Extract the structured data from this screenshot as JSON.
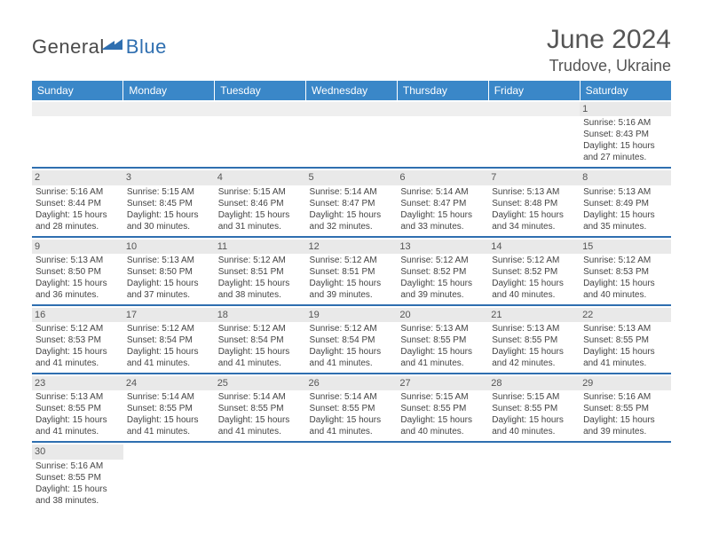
{
  "logo": {
    "main": "General",
    "accent": "Blue"
  },
  "title": "June 2024",
  "location": "Trudove, Ukraine",
  "colors": {
    "header_bg": "#3a87c8",
    "row_sep": "#2f6fb0",
    "daynum_bg": "#e9e9e9",
    "text": "#444444",
    "title_text": "#555555"
  },
  "weekdays": [
    "Sunday",
    "Monday",
    "Tuesday",
    "Wednesday",
    "Thursday",
    "Friday",
    "Saturday"
  ],
  "weeks": [
    [
      null,
      null,
      null,
      null,
      null,
      null,
      {
        "n": "1",
        "sr": "Sunrise: 5:16 AM",
        "ss": "Sunset: 8:43 PM",
        "dl": "Daylight: 15 hours and 27 minutes."
      }
    ],
    [
      {
        "n": "2",
        "sr": "Sunrise: 5:16 AM",
        "ss": "Sunset: 8:44 PM",
        "dl": "Daylight: 15 hours and 28 minutes."
      },
      {
        "n": "3",
        "sr": "Sunrise: 5:15 AM",
        "ss": "Sunset: 8:45 PM",
        "dl": "Daylight: 15 hours and 30 minutes."
      },
      {
        "n": "4",
        "sr": "Sunrise: 5:15 AM",
        "ss": "Sunset: 8:46 PM",
        "dl": "Daylight: 15 hours and 31 minutes."
      },
      {
        "n": "5",
        "sr": "Sunrise: 5:14 AM",
        "ss": "Sunset: 8:47 PM",
        "dl": "Daylight: 15 hours and 32 minutes."
      },
      {
        "n": "6",
        "sr": "Sunrise: 5:14 AM",
        "ss": "Sunset: 8:47 PM",
        "dl": "Daylight: 15 hours and 33 minutes."
      },
      {
        "n": "7",
        "sr": "Sunrise: 5:13 AM",
        "ss": "Sunset: 8:48 PM",
        "dl": "Daylight: 15 hours and 34 minutes."
      },
      {
        "n": "8",
        "sr": "Sunrise: 5:13 AM",
        "ss": "Sunset: 8:49 PM",
        "dl": "Daylight: 15 hours and 35 minutes."
      }
    ],
    [
      {
        "n": "9",
        "sr": "Sunrise: 5:13 AM",
        "ss": "Sunset: 8:50 PM",
        "dl": "Daylight: 15 hours and 36 minutes."
      },
      {
        "n": "10",
        "sr": "Sunrise: 5:13 AM",
        "ss": "Sunset: 8:50 PM",
        "dl": "Daylight: 15 hours and 37 minutes."
      },
      {
        "n": "11",
        "sr": "Sunrise: 5:12 AM",
        "ss": "Sunset: 8:51 PM",
        "dl": "Daylight: 15 hours and 38 minutes."
      },
      {
        "n": "12",
        "sr": "Sunrise: 5:12 AM",
        "ss": "Sunset: 8:51 PM",
        "dl": "Daylight: 15 hours and 39 minutes."
      },
      {
        "n": "13",
        "sr": "Sunrise: 5:12 AM",
        "ss": "Sunset: 8:52 PM",
        "dl": "Daylight: 15 hours and 39 minutes."
      },
      {
        "n": "14",
        "sr": "Sunrise: 5:12 AM",
        "ss": "Sunset: 8:52 PM",
        "dl": "Daylight: 15 hours and 40 minutes."
      },
      {
        "n": "15",
        "sr": "Sunrise: 5:12 AM",
        "ss": "Sunset: 8:53 PM",
        "dl": "Daylight: 15 hours and 40 minutes."
      }
    ],
    [
      {
        "n": "16",
        "sr": "Sunrise: 5:12 AM",
        "ss": "Sunset: 8:53 PM",
        "dl": "Daylight: 15 hours and 41 minutes."
      },
      {
        "n": "17",
        "sr": "Sunrise: 5:12 AM",
        "ss": "Sunset: 8:54 PM",
        "dl": "Daylight: 15 hours and 41 minutes."
      },
      {
        "n": "18",
        "sr": "Sunrise: 5:12 AM",
        "ss": "Sunset: 8:54 PM",
        "dl": "Daylight: 15 hours and 41 minutes."
      },
      {
        "n": "19",
        "sr": "Sunrise: 5:12 AM",
        "ss": "Sunset: 8:54 PM",
        "dl": "Daylight: 15 hours and 41 minutes."
      },
      {
        "n": "20",
        "sr": "Sunrise: 5:13 AM",
        "ss": "Sunset: 8:55 PM",
        "dl": "Daylight: 15 hours and 41 minutes."
      },
      {
        "n": "21",
        "sr": "Sunrise: 5:13 AM",
        "ss": "Sunset: 8:55 PM",
        "dl": "Daylight: 15 hours and 42 minutes."
      },
      {
        "n": "22",
        "sr": "Sunrise: 5:13 AM",
        "ss": "Sunset: 8:55 PM",
        "dl": "Daylight: 15 hours and 41 minutes."
      }
    ],
    [
      {
        "n": "23",
        "sr": "Sunrise: 5:13 AM",
        "ss": "Sunset: 8:55 PM",
        "dl": "Daylight: 15 hours and 41 minutes."
      },
      {
        "n": "24",
        "sr": "Sunrise: 5:14 AM",
        "ss": "Sunset: 8:55 PM",
        "dl": "Daylight: 15 hours and 41 minutes."
      },
      {
        "n": "25",
        "sr": "Sunrise: 5:14 AM",
        "ss": "Sunset: 8:55 PM",
        "dl": "Daylight: 15 hours and 41 minutes."
      },
      {
        "n": "26",
        "sr": "Sunrise: 5:14 AM",
        "ss": "Sunset: 8:55 PM",
        "dl": "Daylight: 15 hours and 41 minutes."
      },
      {
        "n": "27",
        "sr": "Sunrise: 5:15 AM",
        "ss": "Sunset: 8:55 PM",
        "dl": "Daylight: 15 hours and 40 minutes."
      },
      {
        "n": "28",
        "sr": "Sunrise: 5:15 AM",
        "ss": "Sunset: 8:55 PM",
        "dl": "Daylight: 15 hours and 40 minutes."
      },
      {
        "n": "29",
        "sr": "Sunrise: 5:16 AM",
        "ss": "Sunset: 8:55 PM",
        "dl": "Daylight: 15 hours and 39 minutes."
      }
    ],
    [
      {
        "n": "30",
        "sr": "Sunrise: 5:16 AM",
        "ss": "Sunset: 8:55 PM",
        "dl": "Daylight: 15 hours and 38 minutes."
      },
      null,
      null,
      null,
      null,
      null,
      null
    ]
  ]
}
